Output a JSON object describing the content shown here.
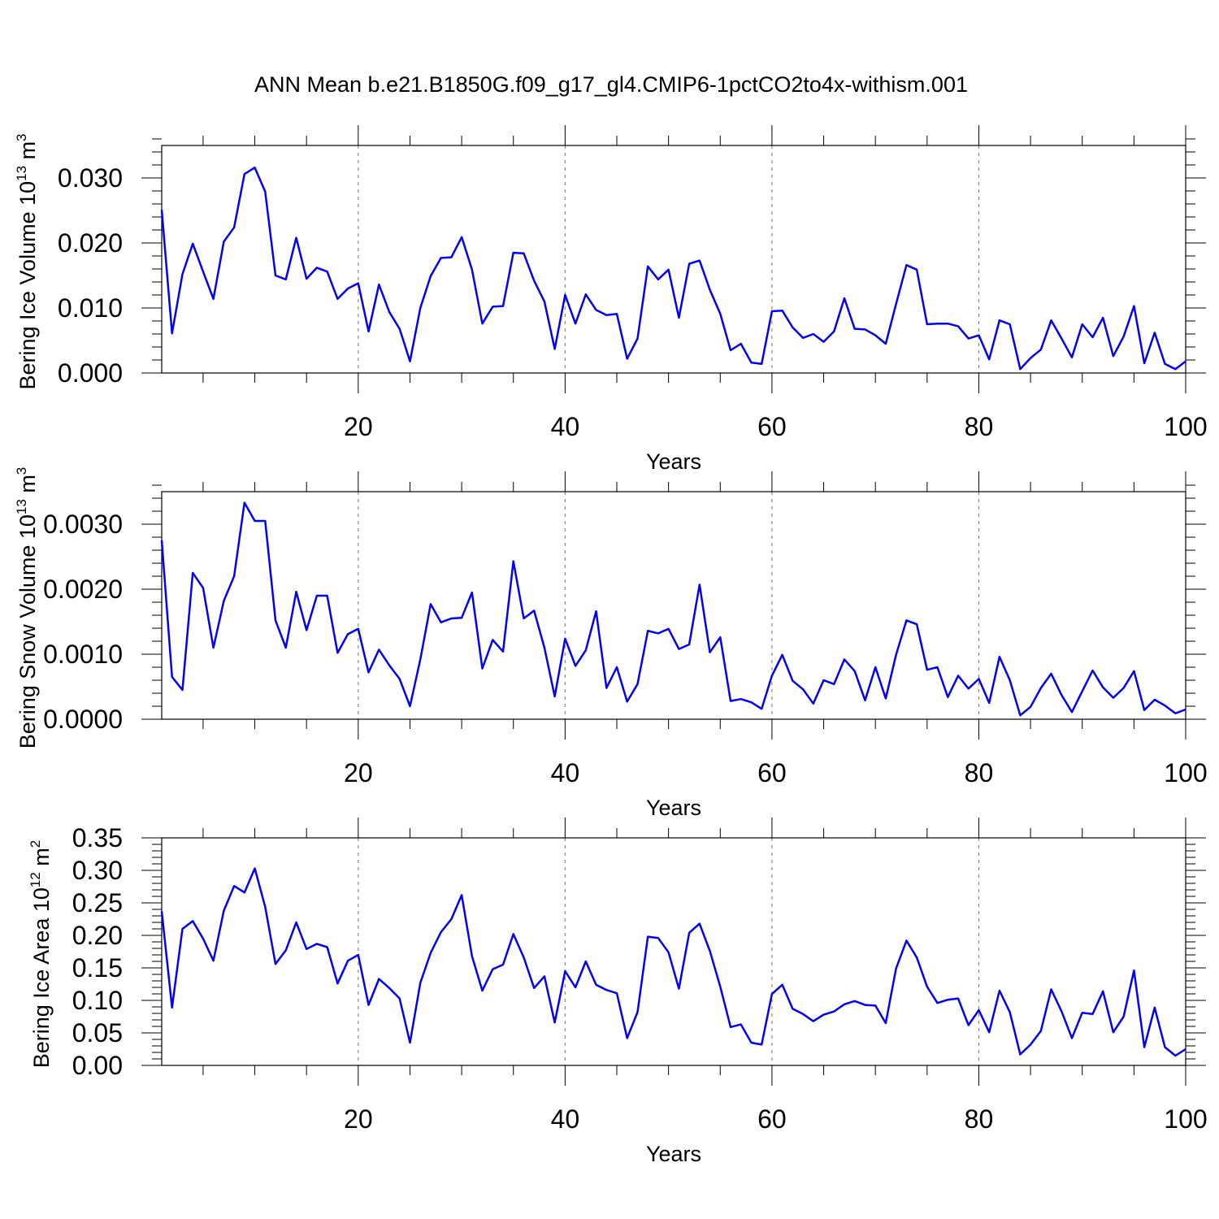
{
  "title": "ANN Mean b.e21.B1850G.f09_g17_gl4.CMIP6-1pctCO2to4x-withism.001",
  "chart_data": [
    {
      "type": "line",
      "ylabel_main": "Bering Ice Volume 10",
      "ylabel_exp": "13",
      "ylabel_unit": " m",
      "ylabel_unit_exp": "3",
      "xlabel": "Years",
      "xlim": [
        1,
        100
      ],
      "ylim": [
        0.0,
        0.035
      ],
      "xticks": [
        20,
        40,
        60,
        80,
        100
      ],
      "yticks": [
        0.0,
        0.01,
        0.02,
        0.03
      ],
      "ytick_labels": [
        "0.000",
        "0.010",
        "0.020",
        "0.030"
      ],
      "yminor_step": 0.002,
      "grid_x": [
        20,
        40,
        60,
        80
      ],
      "line_color": "#0000ff",
      "series_name": "Bering Ice Volume",
      "x": [
        1,
        2,
        3,
        4,
        5,
        6,
        7,
        8,
        9,
        10,
        11,
        12,
        13,
        14,
        15,
        16,
        17,
        18,
        19,
        20,
        21,
        22,
        23,
        24,
        25,
        26,
        27,
        28,
        29,
        30,
        31,
        32,
        33,
        34,
        35,
        36,
        37,
        38,
        39,
        40,
        41,
        42,
        43,
        44,
        45,
        46,
        47,
        48,
        49,
        50,
        51,
        52,
        53,
        54,
        55,
        56,
        57,
        58,
        59,
        60,
        61,
        62,
        63,
        64,
        65,
        66,
        67,
        68,
        69,
        70,
        71,
        72,
        73,
        74,
        75,
        76,
        77,
        78,
        79,
        80,
        81,
        82,
        83,
        84,
        85,
        86,
        87,
        88,
        89,
        90,
        91,
        92,
        93,
        94,
        95,
        96,
        97,
        98,
        99,
        100
      ],
      "values": [
        0.0251,
        0.0061,
        0.0152,
        0.0199,
        0.0156,
        0.0114,
        0.0202,
        0.0224,
        0.0306,
        0.0316,
        0.0279,
        0.015,
        0.0144,
        0.0208,
        0.0145,
        0.0162,
        0.0156,
        0.0114,
        0.013,
        0.0138,
        0.0064,
        0.0136,
        0.0094,
        0.0068,
        0.0018,
        0.01,
        0.0149,
        0.0177,
        0.0178,
        0.0209,
        0.0159,
        0.0076,
        0.0102,
        0.0103,
        0.0185,
        0.0184,
        0.0142,
        0.011,
        0.0037,
        0.012,
        0.0076,
        0.0121,
        0.0097,
        0.0089,
        0.0091,
        0.0022,
        0.0053,
        0.0164,
        0.0144,
        0.0159,
        0.0085,
        0.0168,
        0.0173,
        0.0128,
        0.0091,
        0.0035,
        0.0045,
        0.0016,
        0.0014,
        0.0095,
        0.0096,
        0.007,
        0.0054,
        0.006,
        0.0048,
        0.0064,
        0.0115,
        0.0068,
        0.0067,
        0.0058,
        0.0045,
        0.0106,
        0.0166,
        0.0159,
        0.0075,
        0.0076,
        0.0076,
        0.0072,
        0.0053,
        0.0058,
        0.0021,
        0.0081,
        0.0075,
        0.0006,
        0.0023,
        0.0036,
        0.0081,
        0.0053,
        0.0024,
        0.0075,
        0.0055,
        0.0085,
        0.0026,
        0.0056,
        0.0103,
        0.0015,
        0.0062,
        0.0014,
        0.0006,
        0.0018
      ]
    },
    {
      "type": "line",
      "ylabel_main": "Bering Snow Volume 10",
      "ylabel_exp": "13",
      "ylabel_unit": " m",
      "ylabel_unit_exp": "3",
      "xlabel": "Years",
      "xlim": [
        1,
        100
      ],
      "ylim": [
        0.0,
        0.0035
      ],
      "xticks": [
        20,
        40,
        60,
        80,
        100
      ],
      "yticks": [
        0.0,
        0.001,
        0.002,
        0.003
      ],
      "ytick_labels": [
        "0.0000",
        "0.0010",
        "0.0020",
        "0.0030"
      ],
      "yminor_step": 0.0002,
      "grid_x": [
        20,
        40,
        60,
        80
      ],
      "line_color": "#0000ff",
      "series_name": "Bering Snow Volume",
      "x": [
        1,
        2,
        3,
        4,
        5,
        6,
        7,
        8,
        9,
        10,
        11,
        12,
        13,
        14,
        15,
        16,
        17,
        18,
        19,
        20,
        21,
        22,
        23,
        24,
        25,
        26,
        27,
        28,
        29,
        30,
        31,
        32,
        33,
        34,
        35,
        36,
        37,
        38,
        39,
        40,
        41,
        42,
        43,
        44,
        45,
        46,
        47,
        48,
        49,
        50,
        51,
        52,
        53,
        54,
        55,
        56,
        57,
        58,
        59,
        60,
        61,
        62,
        63,
        64,
        65,
        66,
        67,
        68,
        69,
        70,
        71,
        72,
        73,
        74,
        75,
        76,
        77,
        78,
        79,
        80,
        81,
        82,
        83,
        84,
        85,
        86,
        87,
        88,
        89,
        90,
        91,
        92,
        93,
        94,
        95,
        96,
        97,
        98,
        99,
        100
      ],
      "values": [
        0.00275,
        0.00065,
        0.00045,
        0.00225,
        0.00202,
        0.0011,
        0.00182,
        0.0022,
        0.00333,
        0.00305,
        0.00305,
        0.00152,
        0.0011,
        0.00196,
        0.00137,
        0.0019,
        0.0019,
        0.00102,
        0.00131,
        0.00139,
        0.00072,
        0.00107,
        0.00083,
        0.00062,
        0.0002,
        0.00092,
        0.00177,
        0.00149,
        0.00155,
        0.00156,
        0.00195,
        0.00078,
        0.00122,
        0.00104,
        0.00243,
        0.00155,
        0.00167,
        0.0011,
        0.00035,
        0.00124,
        0.00082,
        0.00106,
        0.00166,
        0.00048,
        0.0008,
        0.00027,
        0.00054,
        0.00136,
        0.00132,
        0.00139,
        0.00108,
        0.00115,
        0.00207,
        0.00103,
        0.00126,
        0.00028,
        0.00031,
        0.00026,
        0.00016,
        0.00067,
        0.00099,
        0.00059,
        0.00046,
        0.00024,
        0.0006,
        0.00054,
        0.00092,
        0.00074,
        0.00029,
        0.0008,
        0.00032,
        0.00099,
        0.00152,
        0.00146,
        0.00076,
        0.0008,
        0.00034,
        0.00067,
        0.00047,
        0.00062,
        0.00025,
        0.00096,
        0.0006,
        6e-05,
        0.00019,
        0.00048,
        0.0007,
        0.00037,
        0.00011,
        0.00043,
        0.00075,
        0.00049,
        0.00033,
        0.00048,
        0.00074,
        0.00014,
        0.0003,
        0.00021,
        9e-05,
        0.00015
      ]
    },
    {
      "type": "line",
      "ylabel_main": "Bering Ice Area 10",
      "ylabel_exp": "12",
      "ylabel_unit": " m",
      "ylabel_unit_exp": "2",
      "xlabel": "Years",
      "xlim": [
        1,
        100
      ],
      "ylim": [
        0.0,
        0.35
      ],
      "xticks": [
        20,
        40,
        60,
        80,
        100
      ],
      "yticks": [
        0.0,
        0.05,
        0.1,
        0.15,
        0.2,
        0.25,
        0.3,
        0.35
      ],
      "ytick_labels": [
        "0.00",
        "0.05",
        "0.10",
        "0.15",
        "0.20",
        "0.25",
        "0.30",
        "0.35"
      ],
      "yminor_step": 0.01,
      "grid_x": [
        20,
        40,
        60,
        80
      ],
      "line_color": "#0000ff",
      "series_name": "Bering Ice Area",
      "x": [
        1,
        2,
        3,
        4,
        5,
        6,
        7,
        8,
        9,
        10,
        11,
        12,
        13,
        14,
        15,
        16,
        17,
        18,
        19,
        20,
        21,
        22,
        23,
        24,
        25,
        26,
        27,
        28,
        29,
        30,
        31,
        32,
        33,
        34,
        35,
        36,
        37,
        38,
        39,
        40,
        41,
        42,
        43,
        44,
        45,
        46,
        47,
        48,
        49,
        50,
        51,
        52,
        53,
        54,
        55,
        56,
        57,
        58,
        59,
        60,
        61,
        62,
        63,
        64,
        65,
        66,
        67,
        68,
        69,
        70,
        71,
        72,
        73,
        74,
        75,
        76,
        77,
        78,
        79,
        80,
        81,
        82,
        83,
        84,
        85,
        86,
        87,
        88,
        89,
        90,
        91,
        92,
        93,
        94,
        95,
        96,
        97,
        98,
        99,
        100
      ],
      "values": [
        0.237,
        0.089,
        0.21,
        0.222,
        0.195,
        0.161,
        0.238,
        0.276,
        0.266,
        0.303,
        0.244,
        0.156,
        0.177,
        0.22,
        0.179,
        0.187,
        0.182,
        0.126,
        0.161,
        0.17,
        0.093,
        0.133,
        0.119,
        0.103,
        0.035,
        0.127,
        0.173,
        0.205,
        0.225,
        0.262,
        0.168,
        0.115,
        0.148,
        0.155,
        0.202,
        0.166,
        0.119,
        0.137,
        0.066,
        0.145,
        0.12,
        0.16,
        0.124,
        0.116,
        0.111,
        0.042,
        0.082,
        0.198,
        0.196,
        0.174,
        0.118,
        0.204,
        0.218,
        0.176,
        0.121,
        0.059,
        0.063,
        0.035,
        0.032,
        0.11,
        0.124,
        0.087,
        0.079,
        0.068,
        0.078,
        0.083,
        0.094,
        0.099,
        0.093,
        0.092,
        0.065,
        0.149,
        0.192,
        0.166,
        0.121,
        0.096,
        0.101,
        0.103,
        0.062,
        0.085,
        0.051,
        0.115,
        0.082,
        0.017,
        0.032,
        0.053,
        0.117,
        0.083,
        0.042,
        0.081,
        0.079,
        0.114,
        0.051,
        0.075,
        0.146,
        0.028,
        0.089,
        0.028,
        0.015,
        0.025
      ]
    }
  ]
}
